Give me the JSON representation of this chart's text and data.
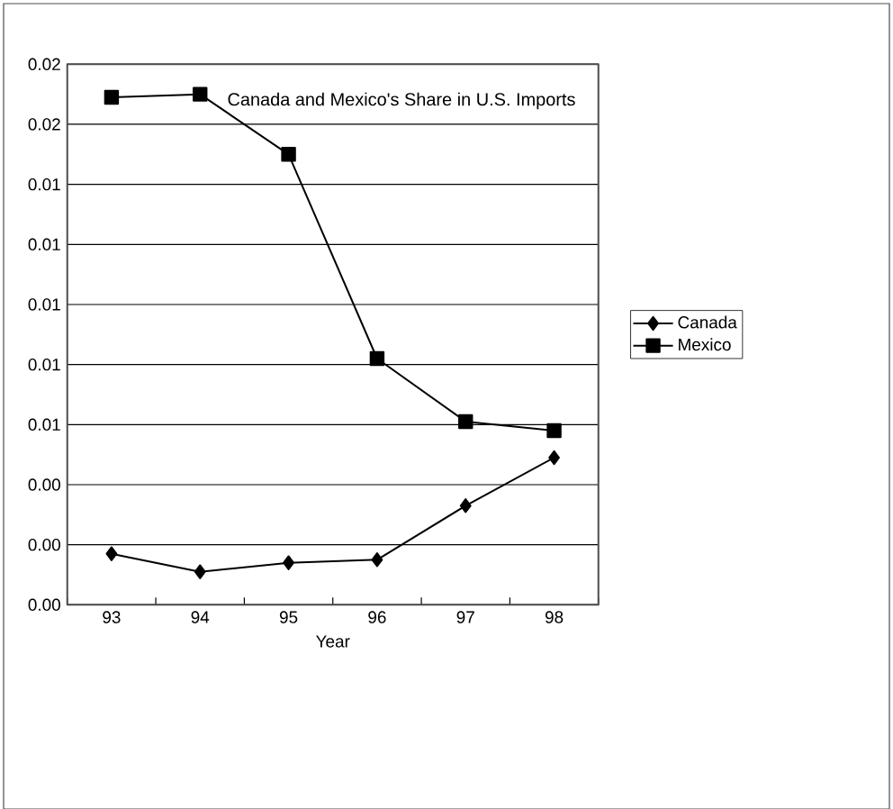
{
  "chart_data": {
    "type": "line",
    "title": "Canada and Mexico's Share in U.S. Imports",
    "xlabel": "Year",
    "categories": [
      "93",
      "94",
      "95",
      "96",
      "97",
      "98"
    ],
    "series": [
      {
        "name": "Canada",
        "color": "#000000",
        "marker": "diamond",
        "values": [
          0.0017,
          0.0011,
          0.0014,
          0.0015,
          0.0033,
          0.0049
        ]
      },
      {
        "name": "Mexico",
        "color": "#000000",
        "marker": "square",
        "values": [
          0.0169,
          0.017,
          0.015,
          0.0082,
          0.0061,
          0.0058
        ]
      }
    ],
    "ylim": [
      0,
      0.018
    ],
    "yticks": [
      {
        "value": 0,
        "label": "0.00"
      },
      {
        "value": 0.002,
        "label": "0.00"
      },
      {
        "value": 0.004,
        "label": "0.00"
      },
      {
        "value": 0.006,
        "label": "0.01"
      },
      {
        "value": 0.008,
        "label": "0.01"
      },
      {
        "value": 0.01,
        "label": "0.01"
      },
      {
        "value": 0.012,
        "label": "0.01"
      },
      {
        "value": 0.014,
        "label": "0.01"
      },
      {
        "value": 0.016,
        "label": "0.02"
      },
      {
        "value": 0.018,
        "label": "0.02"
      }
    ],
    "grid": "y",
    "legend": "right",
    "line_style": "solid"
  }
}
